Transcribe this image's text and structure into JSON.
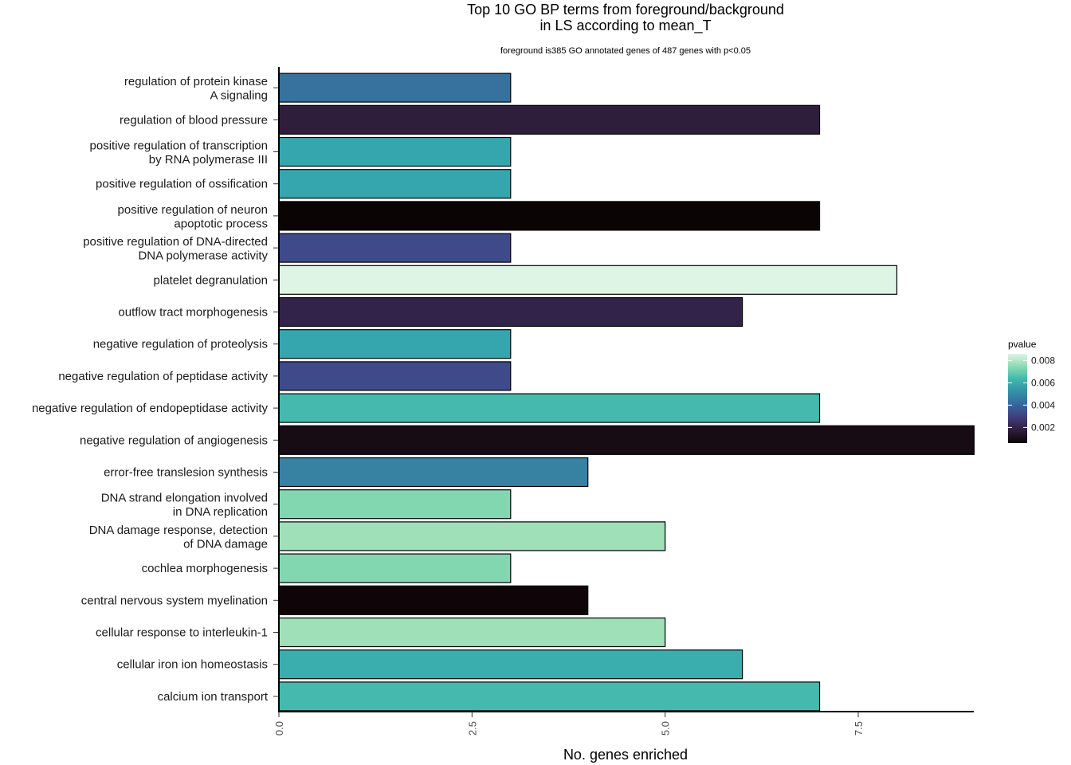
{
  "chart_data": {
    "type": "bar",
    "orientation": "horizontal",
    "title": "Top 10 GO BP terms from foreground/background\nin LS according to mean_T",
    "title_lines": [
      "Top 10 GO BP terms from foreground/background",
      "in LS according to mean_T"
    ],
    "subtitle": "foreground is385 GO annotated genes of 487 genes with p<0.05",
    "xlabel": "No. genes enriched",
    "ylabel": "",
    "xlim": [
      0,
      9
    ],
    "xticks": [
      0,
      2.5,
      5,
      7.5
    ],
    "xtick_labels": [
      "0.0",
      "2.5",
      "5.0",
      "7.5"
    ],
    "grid": false,
    "legend": {
      "title": "pvalue",
      "placement": "right",
      "type": "colorbar",
      "palette": "mako",
      "range": [
        0.0006,
        0.0086
      ],
      "ticks": [
        0.008,
        0.006,
        0.004,
        0.002
      ],
      "tick_labels": [
        "0.008",
        "0.006",
        "0.004",
        "0.002"
      ],
      "colors": [
        "#0b0405",
        "#2e1e3b",
        "#413d7b",
        "#37659e",
        "#348fa7",
        "#40b7ad",
        "#8bdab2",
        "#def5e5"
      ]
    },
    "categories": [
      [
        "regulation of protein kinase",
        "A signaling"
      ],
      [
        "regulation of blood pressure"
      ],
      [
        "positive regulation of transcription",
        "by RNA polymerase III"
      ],
      [
        "positive regulation of ossification"
      ],
      [
        "positive regulation of neuron",
        "apoptotic process"
      ],
      [
        "positive regulation of DNA-directed",
        "DNA polymerase activity"
      ],
      [
        "platelet degranulation"
      ],
      [
        "outflow tract morphogenesis"
      ],
      [
        "negative regulation of proteolysis"
      ],
      [
        "negative regulation of peptidase activity"
      ],
      [
        "negative regulation of endopeptidase activity"
      ],
      [
        "negative regulation of angiogenesis"
      ],
      [
        "error-free translesion synthesis"
      ],
      [
        "DNA strand elongation involved",
        "in DNA replication"
      ],
      [
        "DNA damage response, detection",
        "of DNA damage"
      ],
      [
        "cochlea morphogenesis"
      ],
      [
        "central nervous system myelination"
      ],
      [
        "cellular response to interleukin-1"
      ],
      [
        "cellular iron ion homeostasis"
      ],
      [
        "calcium ion transport"
      ]
    ],
    "values": [
      3,
      7,
      3,
      3,
      7,
      3,
      8,
      6,
      3,
      3,
      7,
      9,
      4,
      3,
      5,
      3,
      4,
      5,
      6,
      7
    ],
    "pvalues": [
      0.0045,
      0.0013,
      0.0056,
      0.0056,
      0.0006,
      0.003,
      0.0086,
      0.0014,
      0.0056,
      0.003,
      0.0064,
      0.0008,
      0.0047,
      0.0073,
      0.0077,
      0.0073,
      0.0007,
      0.0077,
      0.0056,
      0.0064
    ],
    "bar_colors": [
      "#37719e",
      "#2e1e3b",
      "#36a6ae",
      "#36a6ae",
      "#0b0405",
      "#3f4a8a",
      "#def5e5",
      "#32234a",
      "#36a6ae",
      "#3f4a8a",
      "#46b9ae",
      "#170b14",
      "#3782a3",
      "#82d7b1",
      "#a0e0b8",
      "#82d7b1",
      "#0f0509",
      "#a0e0b8",
      "#3aaeae",
      "#46b9ae"
    ]
  }
}
